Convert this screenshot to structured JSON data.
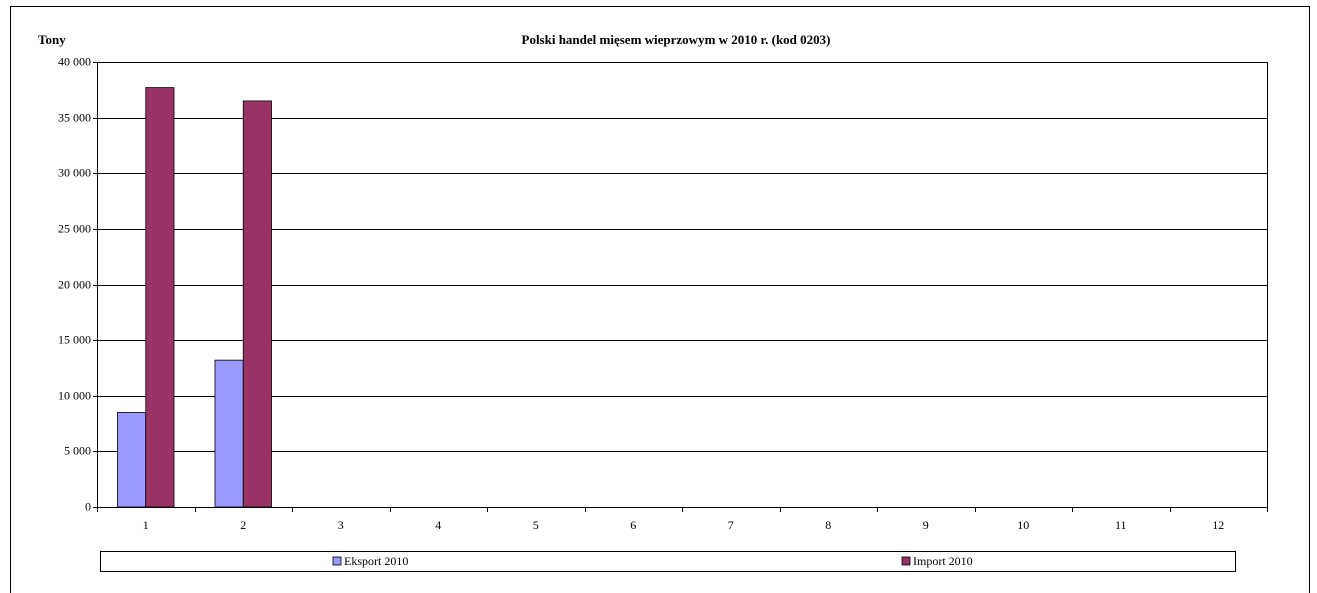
{
  "chart_data": {
    "type": "bar",
    "title": "Polski handel mięsem wieprzowym w 2010 r. (kod 0203)",
    "y_label": "Tony",
    "categories": [
      "1",
      "2",
      "3",
      "4",
      "5",
      "6",
      "7",
      "8",
      "9",
      "10",
      "11",
      "12"
    ],
    "series": [
      {
        "name": "Eksport 2010",
        "color": "#9999ff",
        "values": [
          8500,
          13200,
          null,
          null,
          null,
          null,
          null,
          null,
          null,
          null,
          null,
          null
        ]
      },
      {
        "name": "Import 2010",
        "color": "#993366",
        "values": [
          37700,
          36500,
          null,
          null,
          null,
          null,
          null,
          null,
          null,
          null,
          null,
          null
        ]
      }
    ],
    "ylim": [
      0,
      40000
    ],
    "yticks": [
      0,
      {
        "value": 5000,
        "label": "5 000"
      },
      {
        "value": 10000,
        "label": "10 000"
      },
      {
        "value": 15000,
        "label": "15 000"
      },
      {
        "value": 20000,
        "label": "20 000"
      },
      {
        "value": 25000,
        "label": "25 000"
      },
      {
        "value": 30000,
        "label": "30 000"
      },
      {
        "value": 35000,
        "label": "35 000"
      },
      {
        "value": 40000,
        "label": "40 000"
      }
    ],
    "grid": true,
    "legend": "bottom"
  }
}
